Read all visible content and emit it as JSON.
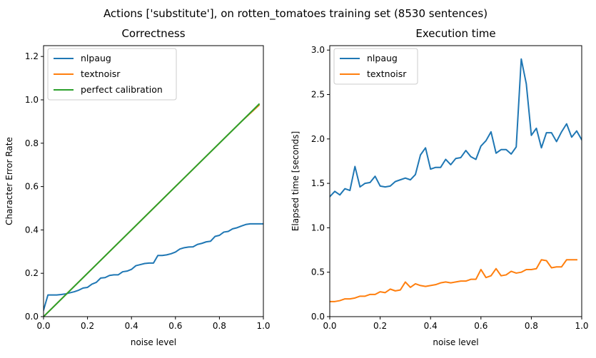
{
  "suptitle": "Actions ['substitute'], on rotten_tomatoes training set (8530 sentences)",
  "chart_data": [
    {
      "type": "line",
      "title": "Correctness",
      "xlabel": "noise level",
      "ylabel": "Character Error Rate",
      "xlim": [
        0,
        1
      ],
      "ylim": [
        0,
        1.25
      ],
      "xticks": [
        "0.0",
        "0.2",
        "0.4",
        "0.6",
        "0.8",
        "1.0"
      ],
      "yticks": [
        "0.0",
        "0.2",
        "0.4",
        "0.6",
        "0.8",
        "1.0",
        "1.2"
      ],
      "legend_position": "top-left",
      "series": [
        {
          "name": "nlpaug",
          "color": "#1f77b4",
          "x": [
            0.0,
            0.02,
            0.04,
            0.06,
            0.08,
            0.1,
            0.12,
            0.14,
            0.16,
            0.18,
            0.2,
            0.22,
            0.24,
            0.26,
            0.28,
            0.3,
            0.32,
            0.34,
            0.36,
            0.38,
            0.4,
            0.42,
            0.44,
            0.46,
            0.48,
            0.5,
            0.52,
            0.54,
            0.56,
            0.58,
            0.6,
            0.62,
            0.64,
            0.66,
            0.68,
            0.7,
            0.72,
            0.74,
            0.76,
            0.78,
            0.8,
            0.82,
            0.84,
            0.86,
            0.88,
            0.9,
            0.92,
            0.94,
            0.96,
            0.98,
            1.0
          ],
          "y": [
            0.03,
            0.1,
            0.1,
            0.1,
            0.102,
            0.105,
            0.11,
            0.115,
            0.122,
            0.132,
            0.135,
            0.15,
            0.158,
            0.178,
            0.18,
            0.19,
            0.193,
            0.193,
            0.207,
            0.21,
            0.218,
            0.235,
            0.24,
            0.245,
            0.247,
            0.247,
            0.282,
            0.282,
            0.285,
            0.29,
            0.298,
            0.312,
            0.318,
            0.321,
            0.322,
            0.333,
            0.338,
            0.345,
            0.348,
            0.37,
            0.375,
            0.39,
            0.393,
            0.405,
            0.41,
            0.418,
            0.425,
            0.428,
            0.428,
            0.428,
            0.428
          ]
        },
        {
          "name": "textnoisr",
          "color": "#ff7f0e",
          "x": [
            0.0,
            0.1,
            0.2,
            0.3,
            0.4,
            0.5,
            0.6,
            0.7,
            0.8,
            0.9,
            0.98
          ],
          "y": [
            0.0,
            0.1,
            0.2,
            0.3,
            0.4,
            0.5,
            0.6,
            0.7,
            0.8,
            0.9,
            0.975
          ]
        },
        {
          "name": " perfect calibration",
          "color": "#2ca02c",
          "x": [
            0.0,
            0.98
          ],
          "y": [
            0.0,
            0.98
          ]
        }
      ]
    },
    {
      "type": "line",
      "title": "Execution time",
      "xlabel": "noise level",
      "ylabel": "Elapsed time [seconds]",
      "xlim": [
        0,
        1
      ],
      "ylim": [
        0,
        3.05
      ],
      "xticks": [
        "0.0",
        "0.2",
        "0.4",
        "0.6",
        "0.8",
        "1.0"
      ],
      "yticks": [
        "0.0",
        "0.5",
        "1.0",
        "1.5",
        "2.0",
        "2.5",
        "3.0"
      ],
      "legend_position": "top-left",
      "series": [
        {
          "name": "nlpaug",
          "color": "#1f77b4",
          "x": [
            0.0,
            0.02,
            0.04,
            0.06,
            0.08,
            0.1,
            0.12,
            0.14,
            0.16,
            0.18,
            0.2,
            0.22,
            0.24,
            0.26,
            0.28,
            0.3,
            0.32,
            0.34,
            0.36,
            0.38,
            0.4,
            0.42,
            0.44,
            0.46,
            0.48,
            0.5,
            0.52,
            0.54,
            0.56,
            0.58,
            0.6,
            0.62,
            0.64,
            0.66,
            0.68,
            0.7,
            0.72,
            0.74,
            0.76,
            0.78,
            0.8,
            0.82,
            0.84,
            0.86,
            0.88,
            0.9,
            0.92,
            0.94,
            0.96,
            0.98,
            1.0
          ],
          "y": [
            1.35,
            1.41,
            1.37,
            1.44,
            1.42,
            1.69,
            1.46,
            1.5,
            1.51,
            1.58,
            1.47,
            1.46,
            1.47,
            1.52,
            1.54,
            1.56,
            1.54,
            1.6,
            1.82,
            1.9,
            1.66,
            1.68,
            1.68,
            1.77,
            1.71,
            1.78,
            1.79,
            1.87,
            1.8,
            1.77,
            1.92,
            1.98,
            2.08,
            1.84,
            1.88,
            1.88,
            1.83,
            1.91,
            2.9,
            2.62,
            2.04,
            2.12,
            1.9,
            2.07,
            2.07,
            1.97,
            2.08,
            2.17,
            2.02,
            2.09,
            1.99
          ]
        },
        {
          "name": "textnoisr",
          "color": "#ff7f0e",
          "x": [
            0.0,
            0.02,
            0.04,
            0.06,
            0.08,
            0.1,
            0.12,
            0.14,
            0.16,
            0.18,
            0.2,
            0.22,
            0.24,
            0.26,
            0.28,
            0.3,
            0.32,
            0.34,
            0.36,
            0.38,
            0.4,
            0.42,
            0.44,
            0.46,
            0.48,
            0.5,
            0.52,
            0.54,
            0.56,
            0.58,
            0.6,
            0.62,
            0.64,
            0.66,
            0.68,
            0.7,
            0.72,
            0.74,
            0.76,
            0.78,
            0.8,
            0.82,
            0.84,
            0.86,
            0.88,
            0.9,
            0.92,
            0.94,
            0.96,
            0.98
          ],
          "y": [
            0.17,
            0.17,
            0.18,
            0.2,
            0.2,
            0.21,
            0.23,
            0.23,
            0.25,
            0.25,
            0.28,
            0.27,
            0.31,
            0.29,
            0.3,
            0.39,
            0.33,
            0.37,
            0.35,
            0.34,
            0.35,
            0.36,
            0.38,
            0.39,
            0.38,
            0.39,
            0.4,
            0.4,
            0.42,
            0.42,
            0.53,
            0.44,
            0.46,
            0.54,
            0.46,
            0.47,
            0.51,
            0.49,
            0.5,
            0.53,
            0.53,
            0.54,
            0.64,
            0.63,
            0.55,
            0.56,
            0.56,
            0.64,
            0.64,
            0.64
          ]
        }
      ]
    }
  ]
}
